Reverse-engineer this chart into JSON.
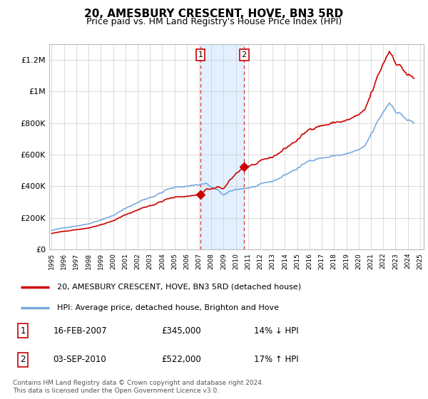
{
  "title": "20, AMESBURY CRESCENT, HOVE, BN3 5RD",
  "subtitle": "Price paid vs. HM Land Registry's House Price Index (HPI)",
  "title_fontsize": 11,
  "subtitle_fontsize": 9,
  "background_color": "#ffffff",
  "plot_bg_color": "#ffffff",
  "grid_color": "#cccccc",
  "ylim": [
    0,
    1300000
  ],
  "yticks": [
    0,
    200000,
    400000,
    600000,
    800000,
    1000000,
    1200000
  ],
  "ytick_labels": [
    "£0",
    "£200K",
    "£400K",
    "£600K",
    "£800K",
    "£1M",
    "£1.2M"
  ],
  "legend_entry1": "20, AMESBURY CRESCENT, HOVE, BN3 5RD (detached house)",
  "legend_entry2": "HPI: Average price, detached house, Brighton and Hove",
  "sale1_label": "1",
  "sale1_date": "16-FEB-2007",
  "sale1_price": "£345,000",
  "sale1_hpi": "14% ↓ HPI",
  "sale1_year": 2007.12,
  "sale1_value": 345000,
  "sale2_label": "2",
  "sale2_date": "03-SEP-2010",
  "sale2_price": "£522,000",
  "sale2_hpi": "17% ↑ HPI",
  "sale2_year": 2010.67,
  "sale2_value": 522000,
  "footer": "Contains HM Land Registry data © Crown copyright and database right 2024.\nThis data is licensed under the Open Government Licence v3.0.",
  "line_color_price": "#cc0000",
  "line_color_hpi": "#7aaadd",
  "shade_color": "#ddeeff",
  "marker_color": "#cc0000"
}
